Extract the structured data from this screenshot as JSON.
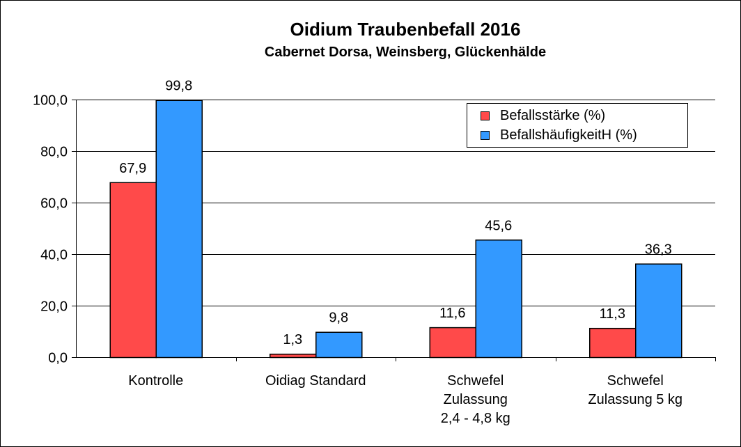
{
  "chart_data": {
    "type": "bar",
    "title": "Oidium Traubenbefall 2016",
    "subtitle": "Cabernet Dorsa, Weinsberg, Glückenhälde",
    "categories": [
      [
        "Kontrolle"
      ],
      [
        "Oidiag Standard"
      ],
      [
        "Schwefel",
        "Zulassung",
        "2,4 - 4,8 kg"
      ],
      [
        "Schwefel",
        "Zulassung 5 kg"
      ]
    ],
    "series": [
      {
        "name": "Befallsstärke (%)",
        "color": "#ff4a4a",
        "values": [
          67.9,
          1.3,
          11.6,
          11.3
        ],
        "labels": [
          "67,9",
          "1,3",
          "11,6",
          "11,3"
        ]
      },
      {
        "name": "BefallshäufigkeitH (%)",
        "color": "#3399ff",
        "values": [
          99.8,
          9.8,
          45.6,
          36.3
        ],
        "labels": [
          "99,8",
          "9,8",
          "45,6",
          "36,3"
        ]
      }
    ],
    "ylim": [
      0,
      100
    ],
    "yticks": [
      0,
      20,
      40,
      60,
      80,
      100
    ],
    "ytick_labels": [
      "0,0",
      "20,0",
      "40,0",
      "60,0",
      "80,0",
      "100,0"
    ],
    "grid": true,
    "legend_position": "top-right"
  }
}
